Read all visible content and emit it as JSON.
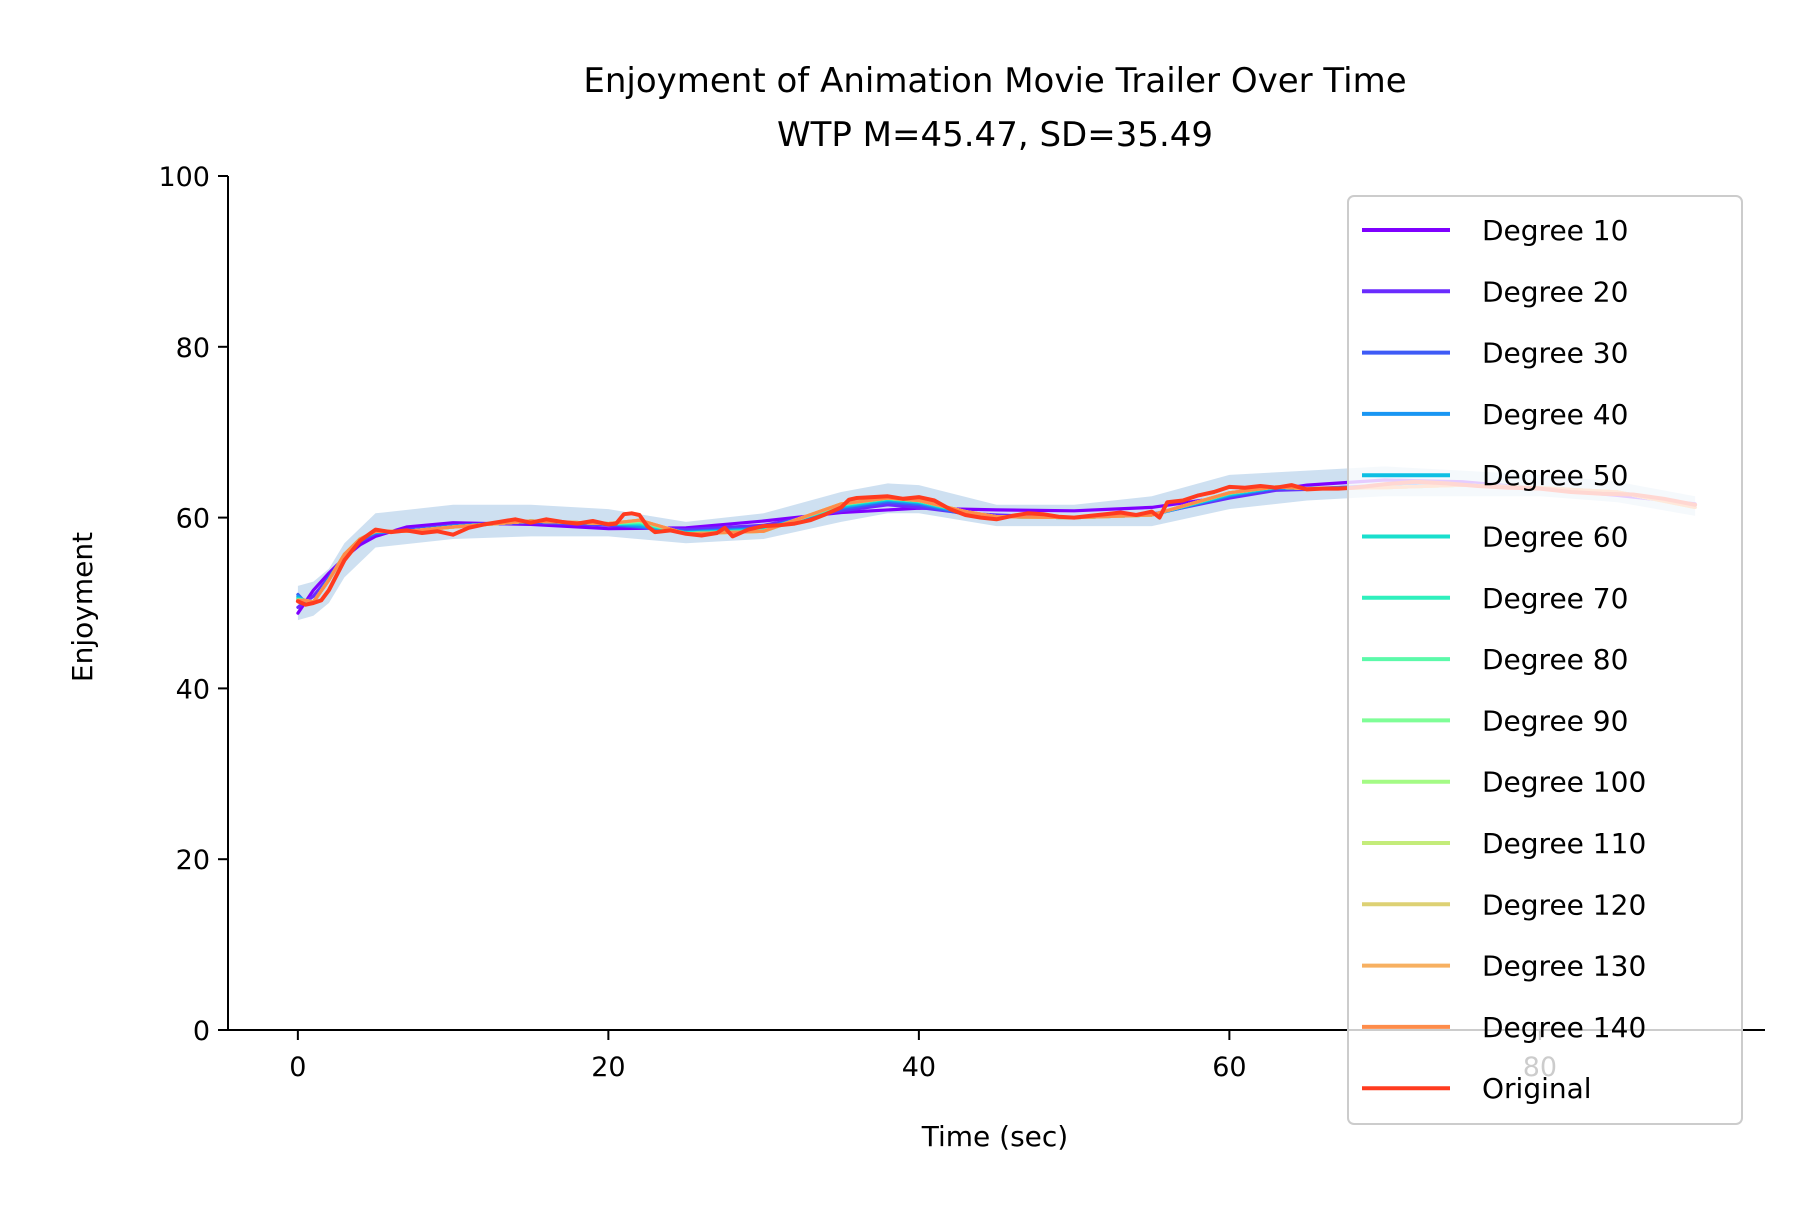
{
  "chart_data": {
    "type": "line",
    "title": "Enjoyment of Animation Movie Trailer Over Time",
    "subtitle": "WTP M=45.47, SD=35.49",
    "xlabel": "Time (sec)",
    "ylabel": "Enjoyment",
    "xlim": [
      -4.5,
      94.5
    ],
    "ylim": [
      0,
      100
    ],
    "x_ticks": [
      0,
      20,
      40,
      60,
      80
    ],
    "y_ticks": [
      0,
      20,
      40,
      60,
      80,
      100
    ],
    "grid": false,
    "legend_position": "right",
    "band": {
      "description": "shaded band around the curves",
      "color": "#c6dbef",
      "x": [
        0,
        1,
        2,
        3,
        5,
        10,
        15,
        20,
        25,
        30,
        35,
        38,
        40,
        45,
        50,
        55,
        60,
        65,
        70,
        75,
        80,
        85,
        90
      ],
      "lower": [
        48,
        48.5,
        50,
        53,
        56.5,
        57.5,
        57.8,
        57.8,
        57,
        57.5,
        59.5,
        60.5,
        60.5,
        59,
        59,
        59,
        61,
        62,
        62.5,
        62.5,
        62.5,
        61.8,
        60.2
      ],
      "upper": [
        52,
        52.5,
        54,
        57,
        60.5,
        61.5,
        61.5,
        61,
        59.5,
        60.5,
        63,
        64,
        63.8,
        61.5,
        61.5,
        62.5,
        65,
        65.5,
        66,
        65.5,
        65,
        64.2,
        62.5
      ]
    },
    "series": [
      {
        "name": "Degree 10",
        "color": "#7f00ff",
        "x": [
          0,
          1,
          2,
          3,
          4,
          5,
          7,
          10,
          15,
          20,
          25,
          30,
          35,
          40,
          45,
          50,
          55,
          60,
          65,
          70,
          75,
          80,
          85,
          90
        ],
        "y": [
          48.8,
          51.5,
          53.5,
          55.3,
          56.8,
          57.8,
          58.9,
          59.4,
          59.2,
          58.7,
          58.8,
          59.6,
          60.6,
          61.1,
          60.9,
          60.8,
          61.2,
          62.5,
          63.8,
          64.4,
          64.2,
          63.4,
          62.6,
          61.6
        ]
      },
      {
        "name": "Degree 20",
        "color": "#6a2cfe",
        "x": [
          0,
          1,
          2,
          3,
          4,
          5,
          7,
          10,
          15,
          20,
          25,
          30,
          35,
          38,
          40,
          43,
          45,
          50,
          55,
          60,
          63,
          65,
          70,
          75,
          80,
          85,
          90
        ],
        "y": [
          49.5,
          50.8,
          53,
          55.5,
          57.2,
          58.1,
          58.6,
          59.1,
          59.4,
          59.1,
          58.6,
          59.1,
          60.8,
          61.5,
          61.2,
          60.5,
          60.3,
          60.0,
          60.4,
          62.3,
          63.2,
          63.3,
          63.8,
          63.9,
          63.5,
          63.0,
          61.4
        ]
      },
      {
        "name": "Degree 30",
        "color": "#3e5bf6",
        "x": [
          0,
          0.5,
          1,
          2,
          3,
          4,
          5,
          7,
          10,
          15,
          20,
          25,
          30,
          35,
          38,
          40,
          43,
          45,
          50,
          55,
          60,
          63,
          65,
          70,
          75,
          80,
          85,
          90
        ],
        "y": [
          51.0,
          50.0,
          50.0,
          53,
          55.5,
          57.3,
          58.2,
          58.5,
          59.0,
          59.5,
          59.2,
          58.4,
          58.8,
          61.0,
          61.8,
          61.5,
          60.4,
          60.1,
          60.0,
          60.3,
          62.5,
          63.4,
          63.4,
          63.7,
          63.8,
          63.5,
          63.0,
          61.2
        ]
      },
      {
        "name": "Degree 40",
        "color": "#1996f3",
        "x": [
          0,
          0.5,
          1,
          2,
          3,
          4,
          5,
          7,
          10,
          15,
          20,
          22,
          25,
          30,
          35,
          38,
          40,
          43,
          45,
          50,
          55,
          60,
          63,
          65,
          70,
          75,
          80,
          85,
          90
        ],
        "y": [
          50.8,
          50.2,
          50.1,
          52.8,
          55.6,
          57.4,
          58.3,
          58.4,
          59.0,
          59.6,
          59.3,
          59.0,
          58.3,
          58.7,
          61.2,
          62.0,
          61.7,
          60.5,
          60.1,
          60.0,
          60.3,
          62.6,
          63.5,
          63.4,
          63.6,
          63.8,
          63.5,
          63.0,
          61.2
        ]
      },
      {
        "name": "Degree 50",
        "color": "#0dbfe3",
        "x": [
          0,
          0.5,
          1,
          2,
          3,
          4,
          5,
          7,
          10,
          15,
          20,
          22,
          25,
          30,
          35,
          38,
          40,
          43,
          45,
          50,
          55,
          60,
          63,
          65,
          70,
          75,
          80,
          85,
          90
        ],
        "y": [
          50.6,
          50.3,
          50.1,
          52.7,
          55.6,
          57.5,
          58.3,
          58.4,
          58.9,
          59.6,
          59.3,
          59.2,
          58.2,
          58.6,
          61.3,
          62.1,
          61.8,
          60.6,
          60.1,
          60.0,
          60.3,
          62.7,
          63.5,
          63.4,
          63.5,
          63.8,
          63.5,
          63.0,
          61.2
        ]
      },
      {
        "name": "Degree 60",
        "color": "#19dfcd",
        "x": [
          0,
          0.5,
          1,
          2,
          3,
          4,
          5,
          7,
          10,
          15,
          20,
          22,
          25,
          30,
          35,
          38,
          40,
          43,
          45,
          50,
          55,
          60,
          63,
          65,
          70,
          75,
          80,
          85,
          90
        ],
        "y": [
          50.5,
          50.3,
          50.1,
          52.7,
          55.7,
          57.5,
          58.4,
          58.4,
          58.9,
          59.6,
          59.3,
          59.3,
          58.2,
          58.5,
          61.4,
          62.2,
          61.9,
          60.6,
          60.1,
          60.0,
          60.3,
          62.8,
          63.6,
          63.4,
          63.5,
          63.8,
          63.5,
          63.0,
          61.2
        ]
      },
      {
        "name": "Degree 70",
        "color": "#2ff0bd",
        "x": [
          0,
          0.5,
          1,
          2,
          3,
          4,
          5,
          7,
          10,
          15,
          20,
          22,
          25,
          30,
          35,
          38,
          40,
          43,
          45,
          50,
          55,
          60,
          63,
          65,
          70,
          75,
          80,
          85,
          90
        ],
        "y": [
          50.4,
          50.3,
          50.1,
          52.7,
          55.7,
          57.5,
          58.4,
          58.4,
          58.9,
          59.6,
          59.3,
          59.4,
          58.2,
          58.5,
          61.5,
          62.2,
          61.9,
          60.7,
          60.1,
          60.0,
          60.3,
          62.8,
          63.6,
          63.4,
          63.5,
          63.8,
          63.5,
          63.0,
          61.2
        ]
      },
      {
        "name": "Degree 80",
        "color": "#5bfaaa",
        "x": [
          0,
          0.5,
          1,
          2,
          3,
          4,
          5,
          7,
          10,
          15,
          20,
          22,
          25,
          30,
          35,
          38,
          40,
          43,
          45,
          50,
          55,
          60,
          63,
          65,
          70,
          75,
          80,
          85,
          90
        ],
        "y": [
          50.4,
          50.3,
          50.1,
          52.7,
          55.7,
          57.5,
          58.4,
          58.4,
          58.9,
          59.6,
          59.3,
          59.5,
          58.1,
          58.4,
          61.5,
          62.3,
          62.0,
          60.7,
          60.1,
          60.0,
          60.3,
          62.9,
          63.6,
          63.4,
          63.5,
          63.8,
          63.5,
          63.0,
          61.2
        ]
      },
      {
        "name": "Degree 90",
        "color": "#7ffe97",
        "x": [
          0,
          0.5,
          1,
          2,
          3,
          4,
          5,
          7,
          10,
          15,
          20,
          22,
          25,
          30,
          35,
          38,
          40,
          43,
          45,
          50,
          55,
          60,
          63,
          65,
          70,
          75,
          80,
          85,
          90
        ],
        "y": [
          50.3,
          50.3,
          50.1,
          52.7,
          55.7,
          57.5,
          58.4,
          58.4,
          58.9,
          59.6,
          59.3,
          59.6,
          58.1,
          58.4,
          61.6,
          62.3,
          62.0,
          60.7,
          60.1,
          60.0,
          60.3,
          62.9,
          63.6,
          63.4,
          63.5,
          63.8,
          63.5,
          63.0,
          61.2
        ]
      },
      {
        "name": "Degree 100",
        "color": "#a4fb85",
        "x": [
          0,
          0.5,
          1,
          2,
          3,
          4,
          5,
          7,
          10,
          15,
          20,
          22,
          25,
          30,
          35,
          38,
          40,
          43,
          45,
          50,
          55,
          60,
          63,
          65,
          70,
          75,
          80,
          85,
          90
        ],
        "y": [
          50.3,
          50.3,
          50.1,
          52.7,
          55.7,
          57.5,
          58.4,
          58.4,
          58.9,
          59.6,
          59.3,
          59.7,
          58.1,
          58.4,
          61.6,
          62.3,
          62.0,
          60.7,
          60.1,
          60.0,
          60.3,
          62.9,
          63.6,
          63.4,
          63.5,
          63.8,
          63.5,
          63.0,
          61.2
        ]
      },
      {
        "name": "Degree 110",
        "color": "#c4ec7a",
        "x": [
          0,
          0.5,
          1,
          2,
          3,
          4,
          5,
          7,
          10,
          15,
          20,
          22,
          25,
          30,
          35,
          38,
          40,
          43,
          45,
          50,
          55,
          60,
          63,
          65,
          70,
          75,
          80,
          85,
          90
        ],
        "y": [
          50.3,
          50.3,
          50.1,
          52.7,
          55.7,
          57.5,
          58.4,
          58.4,
          58.9,
          59.6,
          59.3,
          59.7,
          58.1,
          58.4,
          61.6,
          62.3,
          62.0,
          60.7,
          60.1,
          60.0,
          60.3,
          62.9,
          63.6,
          63.4,
          63.5,
          63.8,
          63.5,
          63.0,
          61.2
        ]
      },
      {
        "name": "Degree 120",
        "color": "#ddd174",
        "x": [
          0,
          0.5,
          1,
          2,
          3,
          4,
          5,
          7,
          10,
          15,
          20,
          22,
          25,
          30,
          35,
          38,
          40,
          43,
          45,
          50,
          55,
          60,
          63,
          65,
          70,
          75,
          80,
          85,
          90
        ],
        "y": [
          50.3,
          50.3,
          50.1,
          52.7,
          55.7,
          57.5,
          58.4,
          58.4,
          58.9,
          59.6,
          59.3,
          59.7,
          58.1,
          58.4,
          61.6,
          62.3,
          62.0,
          60.7,
          60.1,
          60.0,
          60.3,
          62.9,
          63.6,
          63.4,
          63.5,
          63.8,
          63.5,
          63.0,
          61.2
        ]
      },
      {
        "name": "Degree 130",
        "color": "#f7b061",
        "x": [
          0,
          0.5,
          1,
          2,
          3,
          4,
          5,
          7,
          10,
          15,
          20,
          22,
          25,
          30,
          35,
          38,
          40,
          43,
          45,
          50,
          55,
          60,
          63,
          65,
          70,
          75,
          80,
          85,
          90
        ],
        "y": [
          50.3,
          50.3,
          50.1,
          52.7,
          55.7,
          57.5,
          58.4,
          58.4,
          58.9,
          59.6,
          59.3,
          59.7,
          58.1,
          58.4,
          61.6,
          62.3,
          62.0,
          60.7,
          60.1,
          60.0,
          60.3,
          62.9,
          63.6,
          63.4,
          63.5,
          63.8,
          63.5,
          63.0,
          61.2
        ]
      },
      {
        "name": "Degree 140",
        "color": "#fe8c4a",
        "x": [
          0,
          0.5,
          1,
          2,
          3,
          4,
          5,
          7,
          10,
          15,
          20,
          22,
          25,
          30,
          35,
          38,
          40,
          43,
          45,
          50,
          55,
          60,
          63,
          65,
          70,
          75,
          80,
          85,
          90
        ],
        "y": [
          50.3,
          50.3,
          50.1,
          52.7,
          55.7,
          57.5,
          58.4,
          58.4,
          58.9,
          59.6,
          59.3,
          59.7,
          58.1,
          58.4,
          61.6,
          62.3,
          62.0,
          60.7,
          60.1,
          60.0,
          60.3,
          62.9,
          63.6,
          63.4,
          63.5,
          63.8,
          63.5,
          63.0,
          61.2
        ]
      },
      {
        "name": "Original",
        "color": "#ff3b1f",
        "x": [
          0,
          0.5,
          1,
          1.5,
          2,
          3,
          4,
          5,
          6,
          7,
          8,
          9,
          10,
          11,
          12,
          13,
          14,
          15,
          16,
          17,
          18,
          19,
          20,
          20.5,
          21,
          21.5,
          22,
          22.5,
          23,
          24,
          25,
          26,
          27,
          27.5,
          28,
          29,
          30,
          31,
          32,
          33,
          34,
          35,
          35.5,
          36,
          37,
          38,
          39,
          40,
          41,
          42,
          43,
          44,
          45,
          46,
          47,
          48,
          49,
          50,
          51,
          52,
          53,
          54,
          55,
          55.5,
          56,
          57,
          58,
          59,
          60,
          61,
          62,
          63,
          64,
          65,
          66,
          67,
          68,
          69,
          70,
          72,
          74,
          76,
          78,
          80,
          82,
          84,
          86,
          88,
          90
        ],
        "y": [
          50.2,
          49.8,
          50.0,
          50.3,
          51.5,
          55.0,
          57.3,
          58.6,
          58.3,
          58.5,
          58.2,
          58.4,
          58.0,
          58.8,
          59.2,
          59.5,
          59.8,
          59.4,
          59.8,
          59.5,
          59.3,
          59.6,
          59.2,
          59.3,
          60.4,
          60.5,
          60.3,
          59.0,
          58.3,
          58.5,
          58.1,
          57.9,
          58.2,
          58.8,
          57.8,
          58.6,
          59.0,
          59.1,
          59.3,
          59.7,
          60.4,
          61.2,
          62.1,
          62.3,
          62.4,
          62.5,
          62.2,
          62.4,
          62.0,
          61.0,
          60.3,
          60.0,
          59.8,
          60.2,
          60.5,
          60.4,
          60.1,
          60.0,
          60.2,
          60.4,
          60.6,
          60.3,
          60.7,
          60.0,
          61.8,
          62.0,
          62.6,
          63.0,
          63.6,
          63.5,
          63.7,
          63.5,
          63.8,
          63.3,
          63.4,
          63.4,
          63.5,
          63.7,
          63.9,
          64.2,
          64.0,
          63.7,
          63.5,
          63.4,
          63.0,
          62.8,
          62.7,
          62.2,
          61.5
        ]
      }
    ]
  }
}
